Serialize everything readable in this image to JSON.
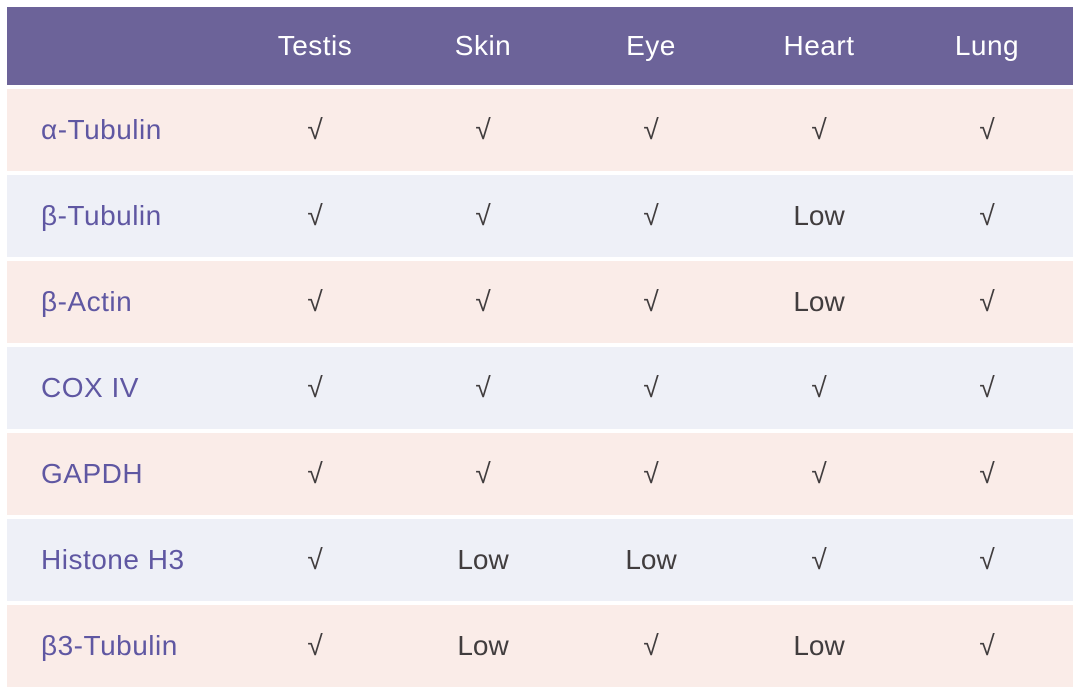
{
  "colors": {
    "header_bg": "#6c6399",
    "header_text": "#ffffff",
    "row_pink": "#faece8",
    "row_lavender": "#eef0f7",
    "label_text": "#5f57a2",
    "value_text": "#413d3e"
  },
  "chart_data": {
    "type": "table",
    "title": "",
    "columns": [
      "Testis",
      "Skin",
      "Eye",
      "Heart",
      "Lung"
    ],
    "row_labels": [
      "α-Tubulin",
      "β-Tubulin",
      "β-Actin",
      "COX IV",
      "GAPDH",
      "Histone H3",
      "β3-Tubulin"
    ],
    "check_symbol": "√",
    "low_label": "Low",
    "rows": [
      {
        "label": "α-Tubulin",
        "cells": [
          "√",
          "√",
          "√",
          "√",
          "√"
        ]
      },
      {
        "label": "β-Tubulin",
        "cells": [
          "√",
          "√",
          "√",
          "Low",
          "√"
        ]
      },
      {
        "label": "β-Actin",
        "cells": [
          "√",
          "√",
          "√",
          "Low",
          "√"
        ]
      },
      {
        "label": "COX IV",
        "cells": [
          "√",
          "√",
          "√",
          "√",
          "√"
        ]
      },
      {
        "label": "GAPDH",
        "cells": [
          "√",
          "√",
          "√",
          "√",
          "√"
        ]
      },
      {
        "label": "Histone H3",
        "cells": [
          "√",
          "Low",
          "Low",
          "√",
          "√"
        ]
      },
      {
        "label": "β3-Tubulin",
        "cells": [
          "√",
          "Low",
          "√",
          "Low",
          "√"
        ]
      }
    ]
  }
}
